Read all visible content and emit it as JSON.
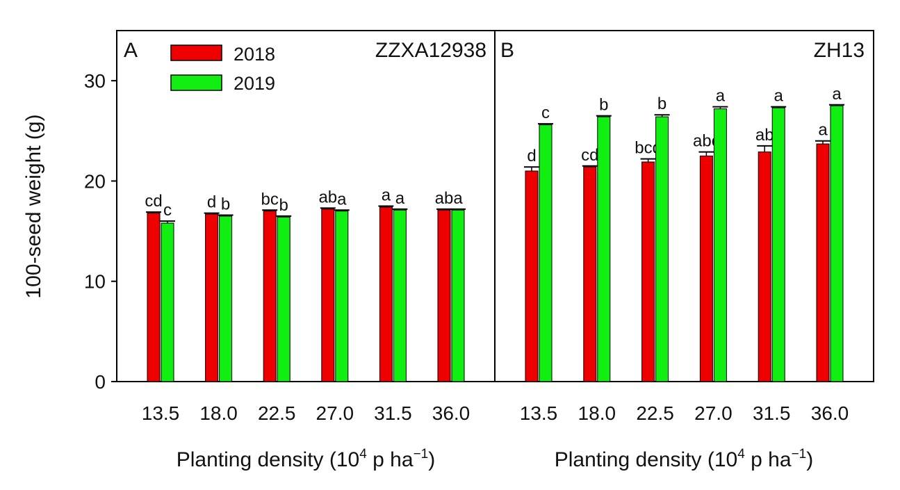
{
  "y_axis": {
    "label": "100-seed weight (g)",
    "ticks": [
      0,
      10,
      20,
      30
    ]
  },
  "legend": [
    {
      "label": "2018",
      "color": "#ee0000"
    },
    {
      "label": "2019",
      "color": "#11ee11"
    }
  ],
  "chart_data": [
    {
      "type": "bar",
      "panel_letter": "A",
      "title": "ZZXA12938",
      "categories": [
        "13.5",
        "18.0",
        "22.5",
        "27.0",
        "31.5",
        "36.0"
      ],
      "xlabel_main": "Planting density (10",
      "xlabel_sup": "4",
      "xlabel_tail": " p ha",
      "xlabel_sup2": "−1",
      "xlabel_end": ")",
      "ylabel": "100-seed weight (g)",
      "ylim": [
        0,
        35
      ],
      "legend_position": "top-left",
      "series": [
        {
          "name": "2018",
          "color": "#ee0000",
          "values": [
            16.8,
            16.7,
            17.0,
            17.2,
            17.4,
            17.1
          ],
          "errors": [
            0.1,
            0.1,
            0.1,
            0.1,
            0.1,
            0.1
          ],
          "letters": [
            "cd",
            "d",
            "bc",
            "ab",
            "a",
            "ab"
          ]
        },
        {
          "name": "2019",
          "color": "#11ee11",
          "values": [
            15.8,
            16.5,
            16.4,
            17.0,
            17.1,
            17.1
          ],
          "errors": [
            0.2,
            0.1,
            0.1,
            0.1,
            0.1,
            0.1
          ],
          "letters": [
            "c",
            "b",
            "b",
            "a",
            "a",
            "a"
          ]
        }
      ]
    },
    {
      "type": "bar",
      "panel_letter": "B",
      "title": "ZH13",
      "categories": [
        "13.5",
        "18.0",
        "22.5",
        "27.0",
        "31.5",
        "36.0"
      ],
      "xlabel_main": "Planting density (10",
      "xlabel_sup": "4",
      "xlabel_tail": " p ha",
      "xlabel_sup2": "−1",
      "xlabel_end": ")",
      "ylim": [
        0,
        35
      ],
      "series": [
        {
          "name": "2018",
          "color": "#ee0000",
          "values": [
            21.0,
            21.4,
            21.9,
            22.5,
            22.9,
            23.7
          ],
          "errors": [
            0.4,
            0.1,
            0.3,
            0.4,
            0.6,
            0.3
          ],
          "letters": [
            "d",
            "cd",
            "bcd",
            "abc",
            "ab",
            "a"
          ]
        },
        {
          "name": "2019",
          "color": "#11ee11",
          "values": [
            25.6,
            26.4,
            26.4,
            27.2,
            27.3,
            27.5
          ],
          "errors": [
            0.1,
            0.1,
            0.2,
            0.2,
            0.1,
            0.1
          ],
          "letters": [
            "c",
            "b",
            "b",
            "a",
            "a",
            "a"
          ]
        }
      ]
    }
  ]
}
